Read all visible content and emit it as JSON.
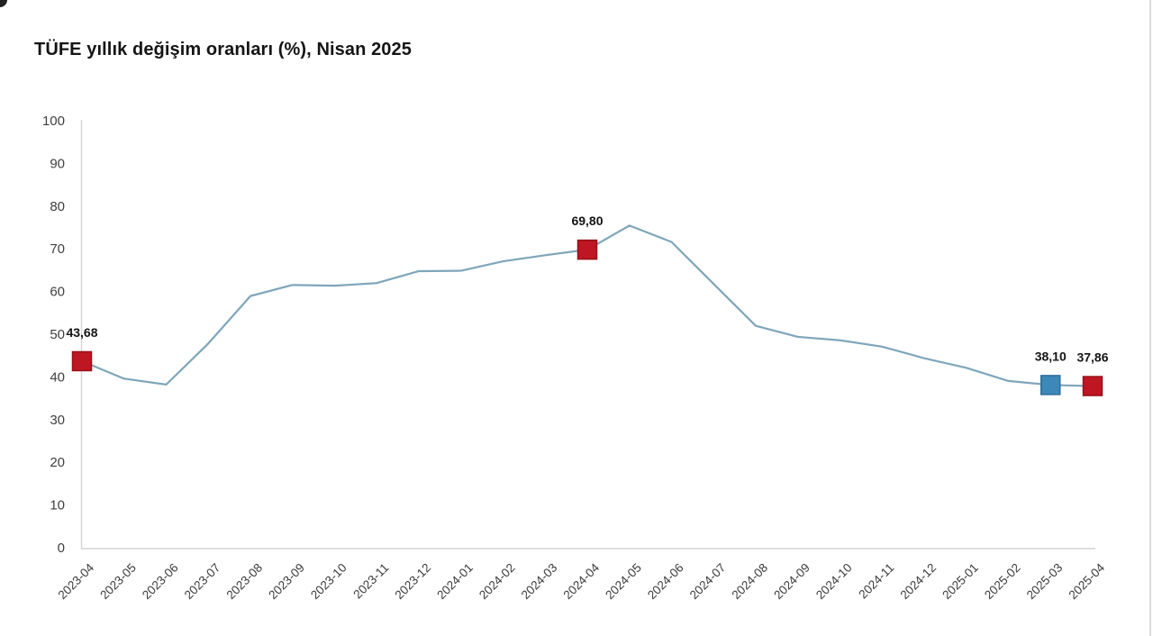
{
  "chart_data": {
    "type": "line",
    "title": "TÜFE yıllık değişim oranları (%), Nisan 2025",
    "x": [
      "2023-04",
      "2023-05",
      "2023-06",
      "2023-07",
      "2023-08",
      "2023-09",
      "2023-10",
      "2023-11",
      "2023-12",
      "2024-01",
      "2024-02",
      "2024-03",
      "2024-04",
      "2024-05",
      "2024-06",
      "2024-07",
      "2024-08",
      "2024-09",
      "2024-10",
      "2024-11",
      "2024-12",
      "2025-01",
      "2025-02",
      "2025-03",
      "2025-04"
    ],
    "values": [
      43.68,
      39.59,
      38.21,
      47.83,
      58.94,
      61.53,
      61.36,
      61.98,
      64.77,
      64.86,
      67.07,
      68.5,
      69.8,
      75.45,
      71.6,
      61.78,
      51.97,
      49.38,
      48.58,
      47.09,
      44.38,
      42.12,
      39.05,
      38.1,
      37.86
    ],
    "ylim": [
      0,
      100
    ],
    "yticks": [
      0,
      10,
      20,
      30,
      40,
      50,
      60,
      70,
      80,
      90,
      100
    ],
    "grid": false,
    "legend": "none",
    "line_color": "#7ea6ba",
    "axis_color": "#d4d4d4",
    "y_tick_label_color": "#3f3f3f",
    "x_tick_label_color": "#3a3a3a",
    "point_label_color": "#141414",
    "annotated_points": [
      {
        "x": "2023-04",
        "value": 43.68,
        "label": "43,68",
        "marker": "square",
        "marker_color": "#be1622",
        "marker_border": "#971118"
      },
      {
        "x": "2024-04",
        "value": 69.8,
        "label": "69,80",
        "marker": "square",
        "marker_color": "#be1622",
        "marker_border": "#971118"
      },
      {
        "x": "2025-03",
        "value": 38.1,
        "label": "38,10",
        "marker": "square",
        "marker_color": "#3c88b8",
        "marker_border": "#2d6d96"
      },
      {
        "x": "2025-04",
        "value": 37.86,
        "label": "37,86",
        "marker": "square",
        "marker_color": "#be1622",
        "marker_border": "#971118"
      }
    ]
  }
}
